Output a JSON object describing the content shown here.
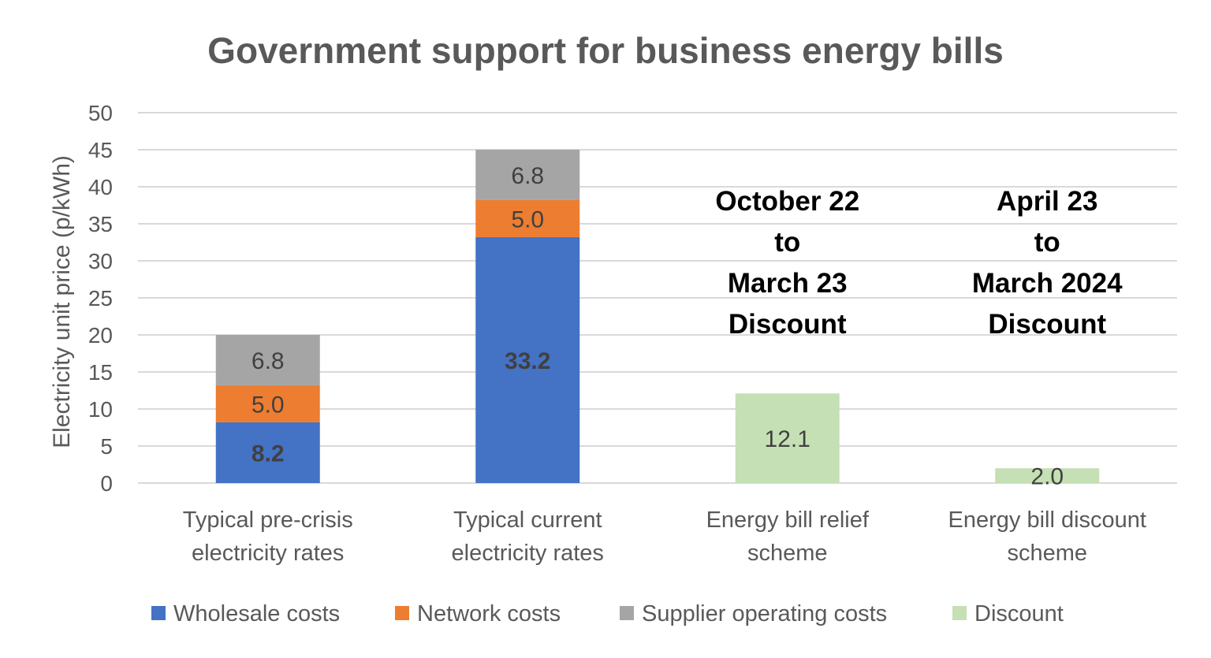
{
  "chart_data": {
    "type": "bar",
    "stacked": true,
    "title": "Government support for business energy bills",
    "xlabel": "",
    "ylabel": "Electricity unit price (p/kWh)",
    "ylim": [
      0,
      50
    ],
    "yticks": [
      0,
      5,
      10,
      15,
      20,
      25,
      30,
      35,
      40,
      45,
      50
    ],
    "grid": true,
    "legend_position": "bottom",
    "categories": [
      [
        "Typical pre-crisis",
        "electricity rates"
      ],
      [
        "Typical current",
        "electricity rates"
      ],
      [
        "Energy bill relief",
        "scheme"
      ],
      [
        "Energy bill discount",
        "scheme"
      ]
    ],
    "series": [
      {
        "name": "Wholesale costs",
        "color": "#4472C4",
        "values": [
          8.2,
          33.2,
          null,
          null
        ],
        "labels": [
          "8.2",
          "33.2",
          "",
          ""
        ],
        "label_bold": true
      },
      {
        "name": "Network costs",
        "color": "#ED7D31",
        "values": [
          5.0,
          5.0,
          null,
          null
        ],
        "labels": [
          "5.0",
          "5.0",
          "",
          ""
        ],
        "label_bold": false
      },
      {
        "name": "Supplier operating costs",
        "color": "#A5A5A5",
        "values": [
          6.8,
          6.8,
          null,
          null
        ],
        "labels": [
          "6.8",
          "6.8",
          "",
          ""
        ],
        "label_bold": false
      },
      {
        "name": "Discount",
        "color": "#C5E0B4",
        "values": [
          null,
          null,
          12.1,
          2.0
        ],
        "labels": [
          "",
          "",
          "12.1",
          "2.0"
        ],
        "label_bold": false
      }
    ],
    "annotations": [
      {
        "category_index": 2,
        "lines": [
          "October 22",
          "to",
          "March 23",
          "Discount"
        ]
      },
      {
        "category_index": 3,
        "lines": [
          "April 23",
          "to",
          "March 2024",
          "Discount"
        ]
      }
    ]
  }
}
